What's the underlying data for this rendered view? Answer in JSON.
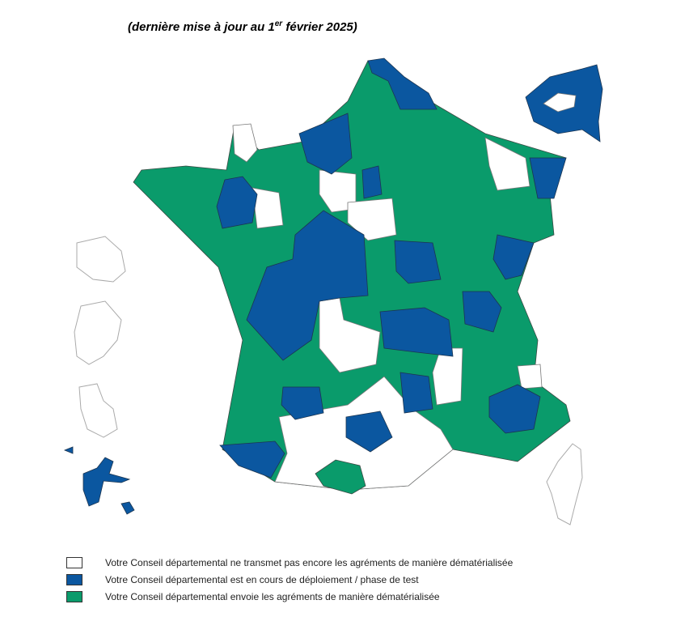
{
  "header": {
    "title_before": "(dernière mise à jour au 1",
    "title_superscript": "er",
    "title_after": " février 2025)"
  },
  "legend": [
    {
      "label": "Votre Conseil départemental ne transmet pas encore les agréments de manière dématérialisée",
      "color": "#ffffff"
    },
    {
      "label": "Votre Conseil départemental est en cours de déploiement / phase de test",
      "color": "#0b57a0"
    },
    {
      "label": "Votre Conseil départemental envoie les agréments de manière dématérialisée",
      "color": "#0a9b6b"
    }
  ]
}
